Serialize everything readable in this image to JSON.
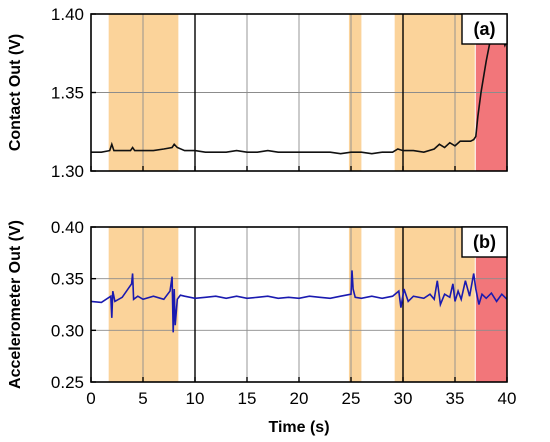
{
  "colors": {
    "shade_orange": "#fbd39a",
    "shade_red": "#f2767a",
    "line_a": "#111111",
    "line_b": "#1a1ab0"
  },
  "x_axis": {
    "label": "Time (s)",
    "ticks": [
      0,
      5,
      10,
      15,
      20,
      25,
      30,
      35,
      40
    ],
    "tick_labels": [
      "0",
      "5",
      "10",
      "15",
      "20",
      "25",
      "30",
      "35",
      "40"
    ],
    "range": [
      0,
      40
    ]
  },
  "chart_data": [
    {
      "type": "line",
      "panel_label": "(a)",
      "ylabel": "Contact Out (V)",
      "ylim": [
        1.3,
        1.4
      ],
      "yticks": [
        1.3,
        1.35,
        1.4
      ],
      "ytick_labels": [
        "1.30",
        "1.35",
        "1.40"
      ],
      "grid": true,
      "regions": [
        {
          "x0": 1.7,
          "x1": 8.4,
          "color": "orange"
        },
        {
          "x0": 24.8,
          "x1": 26.0,
          "color": "orange"
        },
        {
          "x0": 29.2,
          "x1": 36.9,
          "color": "orange"
        },
        {
          "x0": 37.0,
          "x1": 40.0,
          "color": "red"
        }
      ],
      "series": [
        {
          "x": [
            0,
            1,
            1.8,
            2.0,
            2.2,
            3,
            3.8,
            4.0,
            4.2,
            5,
            6,
            7,
            7.8,
            8.0,
            8.3,
            9,
            10,
            11,
            12,
            13,
            14,
            15,
            16,
            17,
            18,
            19,
            20,
            21,
            22,
            23,
            24,
            25,
            26,
            27,
            28,
            29,
            29.5,
            30,
            31,
            32,
            33,
            33.5,
            34,
            34.5,
            35,
            35.5,
            36,
            36.5,
            36.8,
            37.0,
            37.2,
            37.5,
            37.8,
            38.0,
            38.3,
            38.6,
            39.0,
            39.3,
            39.6,
            39.8,
            40
          ],
          "y": [
            1.312,
            1.312,
            1.313,
            1.317,
            1.313,
            1.313,
            1.313,
            1.315,
            1.313,
            1.313,
            1.313,
            1.314,
            1.315,
            1.317,
            1.315,
            1.313,
            1.313,
            1.312,
            1.312,
            1.312,
            1.313,
            1.312,
            1.312,
            1.313,
            1.312,
            1.312,
            1.312,
            1.312,
            1.312,
            1.312,
            1.311,
            1.312,
            1.312,
            1.311,
            1.312,
            1.312,
            1.314,
            1.313,
            1.313,
            1.312,
            1.314,
            1.317,
            1.315,
            1.318,
            1.316,
            1.319,
            1.319,
            1.319,
            1.32,
            1.322,
            1.335,
            1.35,
            1.362,
            1.37,
            1.38,
            1.388,
            1.392,
            1.39,
            1.385,
            1.38,
            1.383
          ]
        }
      ]
    },
    {
      "type": "line",
      "panel_label": "(b)",
      "ylabel": "Accelerometer Out (V)",
      "ylim": [
        0.25,
        0.4
      ],
      "yticks": [
        0.25,
        0.3,
        0.35,
        0.4
      ],
      "ytick_labels": [
        "0.25",
        "0.30",
        "0.35",
        "0.40"
      ],
      "grid": true,
      "regions": [
        {
          "x0": 1.7,
          "x1": 8.4,
          "color": "orange"
        },
        {
          "x0": 24.8,
          "x1": 26.0,
          "color": "orange"
        },
        {
          "x0": 29.2,
          "x1": 36.9,
          "color": "orange"
        },
        {
          "x0": 37.0,
          "x1": 40.0,
          "color": "red"
        }
      ],
      "series": [
        {
          "x": [
            0,
            1,
            1.9,
            2.0,
            2.1,
            2.3,
            3,
            3.9,
            4.0,
            4.1,
            4.5,
            5,
            6,
            7,
            7.6,
            7.8,
            7.9,
            8.0,
            8.1,
            8.3,
            8.6,
            9,
            10,
            11,
            12,
            13,
            14,
            15,
            16,
            17,
            18,
            19,
            20,
            21,
            22,
            23,
            24,
            25.0,
            25.1,
            25.2,
            25.4,
            26,
            27,
            28,
            29,
            29.6,
            29.8,
            30.1,
            30.5,
            31,
            32,
            32.6,
            33,
            33.3,
            33.6,
            34,
            34.5,
            34.8,
            35,
            35.3,
            35.6,
            36,
            36.4,
            36.8,
            37.0,
            37.3,
            37.6,
            38,
            38.5,
            39,
            39.5,
            40
          ],
          "y": [
            0.328,
            0.327,
            0.333,
            0.312,
            0.338,
            0.328,
            0.332,
            0.345,
            0.355,
            0.33,
            0.333,
            0.33,
            0.333,
            0.33,
            0.338,
            0.352,
            0.298,
            0.34,
            0.305,
            0.33,
            0.334,
            0.333,
            0.331,
            0.332,
            0.333,
            0.331,
            0.333,
            0.331,
            0.332,
            0.333,
            0.331,
            0.332,
            0.331,
            0.333,
            0.332,
            0.331,
            0.333,
            0.335,
            0.358,
            0.34,
            0.332,
            0.331,
            0.333,
            0.331,
            0.333,
            0.338,
            0.322,
            0.34,
            0.328,
            0.333,
            0.331,
            0.335,
            0.33,
            0.348,
            0.325,
            0.335,
            0.332,
            0.345,
            0.328,
            0.338,
            0.33,
            0.348,
            0.333,
            0.355,
            0.34,
            0.325,
            0.335,
            0.331,
            0.336,
            0.328,
            0.335,
            0.33
          ]
        }
      ]
    }
  ]
}
